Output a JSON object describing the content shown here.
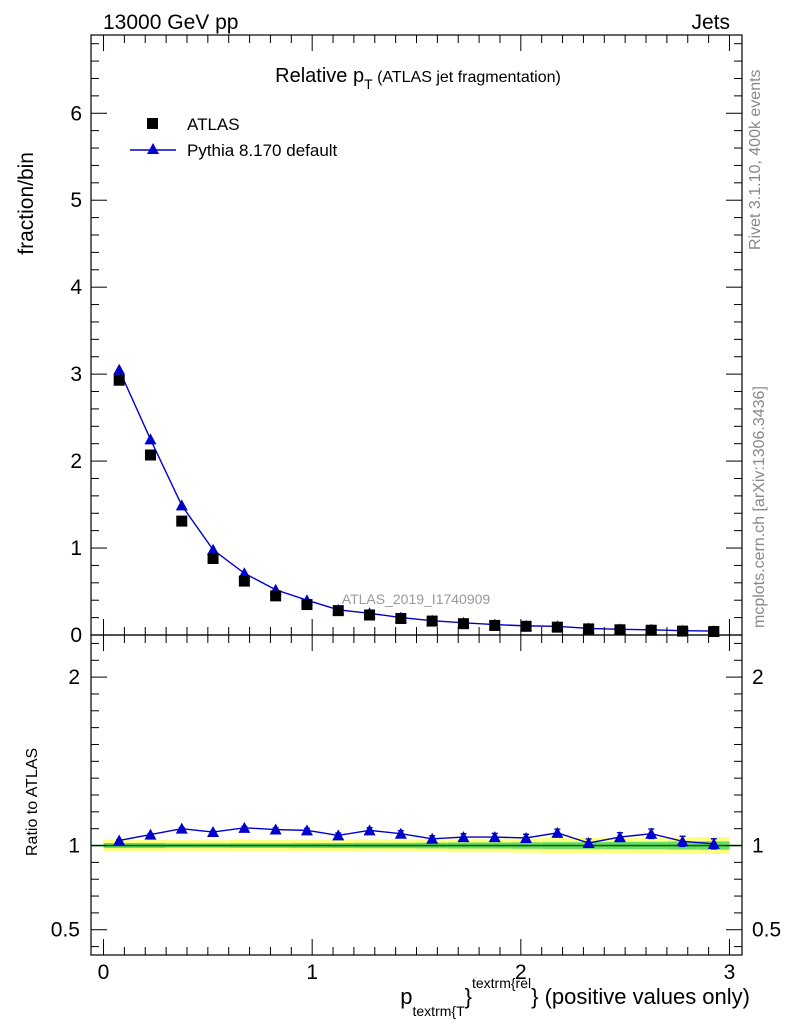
{
  "header": {
    "left": "13000 GeV pp",
    "right": "Jets"
  },
  "side_text": {
    "rivet": "Rivet 3.1.10,  400k events",
    "mcplots": "mcplots.cern.ch [arXiv:1306.3436]"
  },
  "analysis_tag": "ATLAS_2019_I1740909",
  "colors": {
    "mc": "#0000cc",
    "data": "#000000",
    "band_outer": "#ffff80",
    "band_inner": "#66dd66",
    "ref_line": "#006600"
  },
  "chart_data": [
    {
      "type": "scatter",
      "panel": "main",
      "title": {
        "prefix": "Relative p",
        "sub": "T",
        "suffix": " (ATLAS jet fragmentation)"
      },
      "ylabel": "fraction/bin",
      "xlim": [
        -0.06,
        3.06
      ],
      "ylim": [
        0,
        6.9
      ],
      "yticks": [
        0,
        1,
        2,
        3,
        4,
        5,
        6
      ],
      "grid": false,
      "legend_position": "top-left",
      "x": [
        0.075,
        0.225,
        0.375,
        0.525,
        0.675,
        0.825,
        0.975,
        1.125,
        1.275,
        1.425,
        1.575,
        1.725,
        1.875,
        2.025,
        2.175,
        2.325,
        2.475,
        2.625,
        2.775,
        2.925
      ],
      "series": [
        {
          "name": "ATLAS",
          "marker": "square",
          "values": [
            2.93,
            2.07,
            1.31,
            0.88,
            0.62,
            0.45,
            0.35,
            0.28,
            0.23,
            0.19,
            0.16,
            0.13,
            0.11,
            0.1,
            0.09,
            0.07,
            0.06,
            0.055,
            0.045,
            0.04
          ]
        },
        {
          "name": "Pythia 8.170 default",
          "marker": "triangle",
          "values": [
            3.05,
            2.25,
            1.49,
            0.98,
            0.71,
            0.52,
            0.4,
            0.29,
            0.25,
            0.2,
            0.165,
            0.14,
            0.12,
            0.105,
            0.1,
            0.075,
            0.065,
            0.06,
            0.05,
            0.045
          ]
        }
      ]
    },
    {
      "type": "line",
      "panel": "ratio",
      "ylabel": "Ratio to ATLAS",
      "xlabel": {
        "p": "p",
        "sub": "textrm{T",
        "mid": "}",
        "sup": "textrm{rel",
        "tail": "} (positive values only)"
      },
      "xlim": [
        -0.06,
        3.06
      ],
      "ylim": [
        0.35,
        2.25
      ],
      "yticks": [
        0.5,
        1,
        2
      ],
      "xticks": [
        0,
        1,
        2,
        3
      ],
      "reference": 1.0,
      "x": [
        0.075,
        0.225,
        0.375,
        0.525,
        0.675,
        0.825,
        0.975,
        1.125,
        1.275,
        1.425,
        1.575,
        1.725,
        1.875,
        2.025,
        2.175,
        2.325,
        2.475,
        2.625,
        2.775,
        2.925
      ],
      "series": [
        {
          "name": "Pythia 8.170 default",
          "values": [
            1.03,
            1.065,
            1.1,
            1.08,
            1.105,
            1.095,
            1.09,
            1.06,
            1.09,
            1.07,
            1.04,
            1.05,
            1.05,
            1.045,
            1.075,
            1.015,
            1.05,
            1.07,
            1.025,
            1.01
          ],
          "errors": [
            0.004,
            0.005,
            0.006,
            0.006,
            0.008,
            0.01,
            0.012,
            0.014,
            0.016,
            0.018,
            0.018,
            0.02,
            0.022,
            0.022,
            0.022,
            0.024,
            0.026,
            0.028,
            0.03,
            0.03
          ]
        }
      ],
      "band_outer_halfwidth": [
        0.035,
        0.035,
        0.032,
        0.032,
        0.033,
        0.033,
        0.035,
        0.035,
        0.037,
        0.037,
        0.038,
        0.04,
        0.04,
        0.042,
        0.045,
        0.045,
        0.045,
        0.045,
        0.05,
        0.05
      ],
      "band_inner_halfwidth": [
        0.015,
        0.015,
        0.013,
        0.013,
        0.014,
        0.014,
        0.015,
        0.015,
        0.016,
        0.016,
        0.017,
        0.018,
        0.018,
        0.019,
        0.02,
        0.02,
        0.021,
        0.022,
        0.024,
        0.025
      ]
    }
  ]
}
